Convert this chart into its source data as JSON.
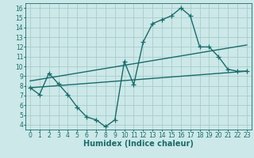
{
  "bg_color": "#cce8e8",
  "grid_color": "#aacccc",
  "line_color": "#1a6b6b",
  "line_width": 1.0,
  "marker_size": 4,
  "xlabel": "Humidex (Indice chaleur)",
  "xlabel_fontsize": 7,
  "tick_fontsize": 5.5,
  "xlim": [
    -0.5,
    23.5
  ],
  "ylim": [
    3.5,
    16.5
  ],
  "xticks": [
    0,
    1,
    2,
    3,
    4,
    5,
    6,
    7,
    8,
    9,
    10,
    11,
    12,
    13,
    14,
    15,
    16,
    17,
    18,
    19,
    20,
    21,
    22,
    23
  ],
  "yticks": [
    4,
    5,
    6,
    7,
    8,
    9,
    10,
    11,
    12,
    13,
    14,
    15,
    16
  ],
  "series1_x": [
    0,
    1,
    2,
    3,
    4,
    5,
    6,
    7,
    8,
    9,
    10,
    11,
    12,
    13,
    14,
    15,
    16,
    17,
    18,
    19,
    20,
    21,
    22,
    23
  ],
  "series1_y": [
    7.8,
    7.1,
    9.3,
    8.2,
    7.1,
    5.8,
    4.8,
    4.5,
    3.8,
    4.5,
    10.5,
    8.1,
    12.5,
    14.4,
    14.8,
    15.2,
    16.0,
    15.2,
    12.0,
    12.0,
    11.0,
    9.7,
    9.5,
    9.5
  ],
  "series2_x": [
    0,
    23
  ],
  "series2_y": [
    7.8,
    9.5
  ],
  "series3_x": [
    0,
    23
  ],
  "series3_y": [
    8.5,
    12.2
  ]
}
